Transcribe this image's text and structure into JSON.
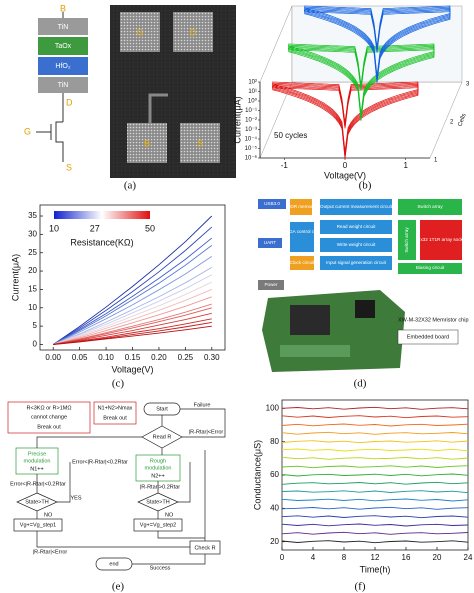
{
  "device": {
    "top": "B",
    "layers": [
      "TiN",
      "TaOx",
      "HfO₂",
      "TiN"
    ],
    "terminals": [
      "D",
      "G",
      "S"
    ]
  },
  "photo": {
    "pads": [
      "G",
      "D",
      "B",
      "S"
    ]
  },
  "board": {
    "blocks": [
      "USB3.0",
      "DDR memory",
      "Output current measurement circuit",
      "Switch array",
      "UART",
      "FPGA control core",
      "Read weight circuit",
      "Write weight circuit",
      "32x32 1T1R array socket",
      "Switch array",
      "Clock circuit",
      "Input signal generation circuit",
      "Biasing circuit",
      "Power"
    ],
    "chip": "XW-M-32X32 Memristor chip",
    "board_label": "Embedded board"
  },
  "flowchart": {
    "break1": [
      "R<3KΩ or R>1MΩ",
      "cannot change",
      "Break out"
    ],
    "break2": [
      "N1+N2>Nmax",
      "Break out"
    ],
    "start": "Start",
    "failure": "Failure",
    "read": "Read R",
    "right_cond": "|R-Rtar|<Error",
    "precise": [
      "Precise",
      "modulation",
      "N1++"
    ],
    "rough": [
      "Rough",
      "modulation",
      "N2++"
    ],
    "cond_mid": "Error<|R-Rtar|<0.2Rtar",
    "cond_left": "Error<|R-Rtar|<0.2Rtar",
    "cond_right": "|R-Rtar|>0.2Rtar",
    "state": "State>TH",
    "yes": "YES",
    "no": "NO",
    "step1": "Vg+=Vg_step1",
    "step2": "Vg+=Vg_step2",
    "bottom_cond": "|R-Rtar|<Error",
    "check": "Check R",
    "success": "Success",
    "end": "end"
  },
  "captions": [
    "(a)",
    "(b)",
    "(c)",
    "(d)",
    "(e)",
    "(f)"
  ],
  "chart_data": [
    {
      "type": "line",
      "xlabel": "Voltage(V)",
      "ylabel": "Current(μA)",
      "x": [
        0,
        0.05,
        0.1,
        0.15,
        0.2,
        0.25,
        0.3
      ],
      "xlim": [
        -0.025,
        0.325
      ],
      "xticks": [
        {
          "value": 0,
          "label": "0.00"
        },
        {
          "value": 0.05,
          "label": "0.05"
        },
        {
          "value": 0.1,
          "label": "0.10"
        },
        {
          "value": 0.15,
          "label": "0.15"
        },
        {
          "value": 0.2,
          "label": "0.20"
        },
        {
          "value": 0.25,
          "label": "0.25"
        },
        {
          "value": 0.3,
          "label": "0.30"
        }
      ],
      "ylim": [
        -1.5,
        38
      ],
      "yticks": [
        0,
        5,
        10,
        15,
        20,
        25,
        30,
        35
      ],
      "colorbar": {
        "label": "Resistance(KΩ)",
        "lim": [
          10,
          50
        ],
        "ticks": [
          10,
          27,
          50
        ],
        "colors": [
          "#1020d0",
          "#ffffff",
          "#e01010"
        ]
      },
      "series": [
        {
          "color": "#1a2fa8",
          "values": [
            0,
            4.9,
            10.2,
            15.8,
            21.7,
            28,
            35
          ]
        },
        {
          "color": "#2a44b8",
          "values": [
            0,
            4.5,
            9.3,
            14.4,
            19.8,
            25.6,
            32
          ]
        },
        {
          "color": "#3d5cc8",
          "values": [
            0,
            4.1,
            8.4,
            13.1,
            18,
            23.2,
            29
          ]
        },
        {
          "color": "#5a7ad6",
          "values": [
            0,
            3.8,
            7.8,
            12.2,
            16.7,
            21.6,
            27
          ]
        },
        {
          "color": "#7f97e0",
          "values": [
            0,
            3.4,
            7,
            10.8,
            14.9,
            19.2,
            24
          ]
        },
        {
          "color": "#a6b4ea",
          "values": [
            0,
            2.9,
            6.1,
            9.5,
            13,
            16.8,
            21
          ]
        },
        {
          "color": "#c9cfef",
          "values": [
            0,
            2.7,
            5.5,
            8.6,
            11.8,
            15.2,
            19
          ]
        },
        {
          "color": "#e6d6dc",
          "values": [
            0,
            2.4,
            4.9,
            7.7,
            10.5,
            13.6,
            17
          ]
        },
        {
          "color": "#f0bcbc",
          "values": [
            0,
            2.1,
            4.4,
            6.8,
            9.3,
            12,
            15
          ]
        },
        {
          "color": "#ec9a9a",
          "values": [
            0,
            1.8,
            3.8,
            5.9,
            8.1,
            10.4,
            13
          ]
        },
        {
          "color": "#e67878",
          "values": [
            0,
            1.5,
            3.2,
            5,
            6.8,
            8.8,
            11
          ]
        },
        {
          "color": "#e05858",
          "values": [
            0,
            1.4,
            2.9,
            4.5,
            6.2,
            8,
            10
          ]
        },
        {
          "color": "#d83c3c",
          "values": [
            0,
            1.2,
            2.5,
            3.8,
            5.3,
            6.8,
            8.5
          ]
        },
        {
          "color": "#cf2727",
          "values": [
            0,
            1,
            2,
            3.2,
            4.3,
            5.6,
            7
          ]
        },
        {
          "color": "#c41a1a",
          "values": [
            0,
            0.8,
            1.7,
            2.7,
            3.7,
            4.8,
            6
          ]
        },
        {
          "color": "#b80f0f",
          "values": [
            0,
            0.7,
            1.5,
            2.3,
            3.1,
            4,
            5
          ]
        }
      ]
    },
    {
      "type": "line",
      "xlabel": "Time(h)",
      "ylabel": "Conductance(μS)",
      "x": [
        0,
        2,
        4,
        6,
        8,
        10,
        12,
        14,
        16,
        18,
        20,
        22,
        24
      ],
      "xlim": [
        0,
        24
      ],
      "xticks": [
        0,
        4,
        8,
        12,
        16,
        20,
        24
      ],
      "ylim": [
        15,
        105
      ],
      "yticks": [
        20,
        40,
        60,
        80,
        100
      ],
      "series": [
        {
          "color": "#b22222",
          "values": [
            100,
            100.5,
            99.7,
            100.4,
            99.5,
            100.2,
            100.6,
            99.8,
            100.3,
            99.4,
            100.1,
            100.4,
            99.7
          ]
        },
        {
          "color": "#d9381e",
          "values": [
            95.5,
            94.7,
            95.4,
            94.5,
            95.2,
            95.6,
            94.8,
            95.3,
            94.4,
            95.1,
            95.4,
            94.7,
            95
          ]
        },
        {
          "color": "#f06a1a",
          "values": [
            89.7,
            90.4,
            89.5,
            90.2,
            90.6,
            89.8,
            90.3,
            89.4,
            90.1,
            90.4,
            89.7,
            90,
            90.5
          ]
        },
        {
          "color": "#f59a1c",
          "values": [
            85.4,
            84.5,
            85.2,
            85.6,
            84.8,
            85.3,
            84.4,
            85.1,
            85.4,
            84.7,
            85,
            85.5,
            84.7
          ]
        },
        {
          "color": "#f2c21b",
          "values": [
            79.5,
            80.2,
            80.6,
            79.8,
            80.3,
            79.4,
            80.1,
            80.4,
            79.7,
            80,
            80.5,
            79.7,
            80.4
          ]
        },
        {
          "color": "#e5e01a",
          "values": [
            75.2,
            75.6,
            74.8,
            75.3,
            74.4,
            75.1,
            75.4,
            74.7,
            75,
            75.5,
            74.7,
            75.4,
            74.5
          ]
        },
        {
          "color": "#b5d61c",
          "values": [
            70.6,
            69.8,
            70.3,
            69.4,
            70.1,
            70.4,
            69.7,
            70,
            70.5,
            69.7,
            70.4,
            69.5,
            70.2
          ]
        },
        {
          "color": "#6cc425",
          "values": [
            64.8,
            65.3,
            64.4,
            65.1,
            65.4,
            64.7,
            65,
            65.5,
            64.7,
            65.4,
            64.5,
            65.2,
            65.6
          ]
        },
        {
          "color": "#2fae33",
          "values": [
            60.3,
            59.4,
            60.1,
            60.4,
            59.7,
            60,
            60.5,
            59.7,
            60.4,
            59.5,
            60.2,
            60.6,
            59.8
          ]
        },
        {
          "color": "#1e9a62",
          "values": [
            54.4,
            55.1,
            55.4,
            54.7,
            55,
            55.5,
            54.7,
            55.4,
            54.5,
            55.2,
            55.6,
            54.8,
            55.3
          ]
        },
        {
          "color": "#1b9aa0",
          "values": [
            50.1,
            50.4,
            49.7,
            50,
            50.5,
            49.7,
            50.4,
            49.5,
            50.2,
            50.6,
            49.8,
            50.3,
            49.4
          ]
        },
        {
          "color": "#1b86c4",
          "values": [
            45.4,
            44.7,
            45,
            45.5,
            44.7,
            45.4,
            44.5,
            45.2,
            45.6,
            44.8,
            45.3,
            44.4,
            45.1
          ]
        },
        {
          "color": "#2563c9",
          "values": [
            39.7,
            40,
            40.5,
            39.7,
            40.4,
            39.5,
            40.2,
            40.6,
            39.8,
            40.3,
            39.4,
            40.1,
            40.4
          ]
        },
        {
          "color": "#2a3fb5",
          "values": [
            35,
            35.5,
            34.7,
            35.4,
            34.5,
            35.2,
            35.6,
            34.8,
            35.3,
            34.4,
            35.1,
            35.4,
            34.7
          ]
        },
        {
          "color": "#3a2b9a",
          "values": [
            30.5,
            29.7,
            30.4,
            29.5,
            30.2,
            30.6,
            29.8,
            30.3,
            29.4,
            30.1,
            30.4,
            29.7,
            30
          ]
        },
        {
          "color": "#5a2a8a",
          "values": [
            24.7,
            25.4,
            24.5,
            25.2,
            25.6,
            24.8,
            25.3,
            24.4,
            25.1,
            25.4,
            24.7,
            25,
            25.5
          ]
        },
        {
          "color": "#222222",
          "values": [
            20.4,
            19.5,
            20.2,
            20.6,
            19.8,
            20.3,
            19.4,
            20.1,
            20.4,
            19.7,
            20,
            20.5,
            19.7
          ]
        }
      ]
    },
    {
      "type": "iv-3d",
      "xlabel": "Voltage(V)",
      "ylabel": "Current(μA)",
      "zlabel": "Cells",
      "annotation": "50 cycles",
      "log_y": true,
      "xlim": [
        -1.4,
        1.4
      ],
      "xticks": [
        -1,
        0,
        1
      ],
      "ylim": [
        1e-06,
        100
      ],
      "yticks": [
        {
          "value": 100,
          "label": "10²"
        },
        {
          "value": 10,
          "label": "10¹"
        },
        {
          "value": 1,
          "label": "10⁰"
        },
        {
          "value": 0.1,
          "label": "10⁻¹"
        },
        {
          "value": 0.01,
          "label": "10⁻²"
        },
        {
          "value": 0.001,
          "label": "10⁻³"
        },
        {
          "value": 0.0001,
          "label": "10⁻⁴"
        },
        {
          "value": 1e-05,
          "label": "10⁻⁵"
        },
        {
          "value": 1e-06,
          "label": "10⁻⁶"
        }
      ],
      "zticks": [
        1,
        2,
        3
      ],
      "colors": [
        "#e01010",
        "#12c020",
        "#1060e0"
      ]
    }
  ]
}
